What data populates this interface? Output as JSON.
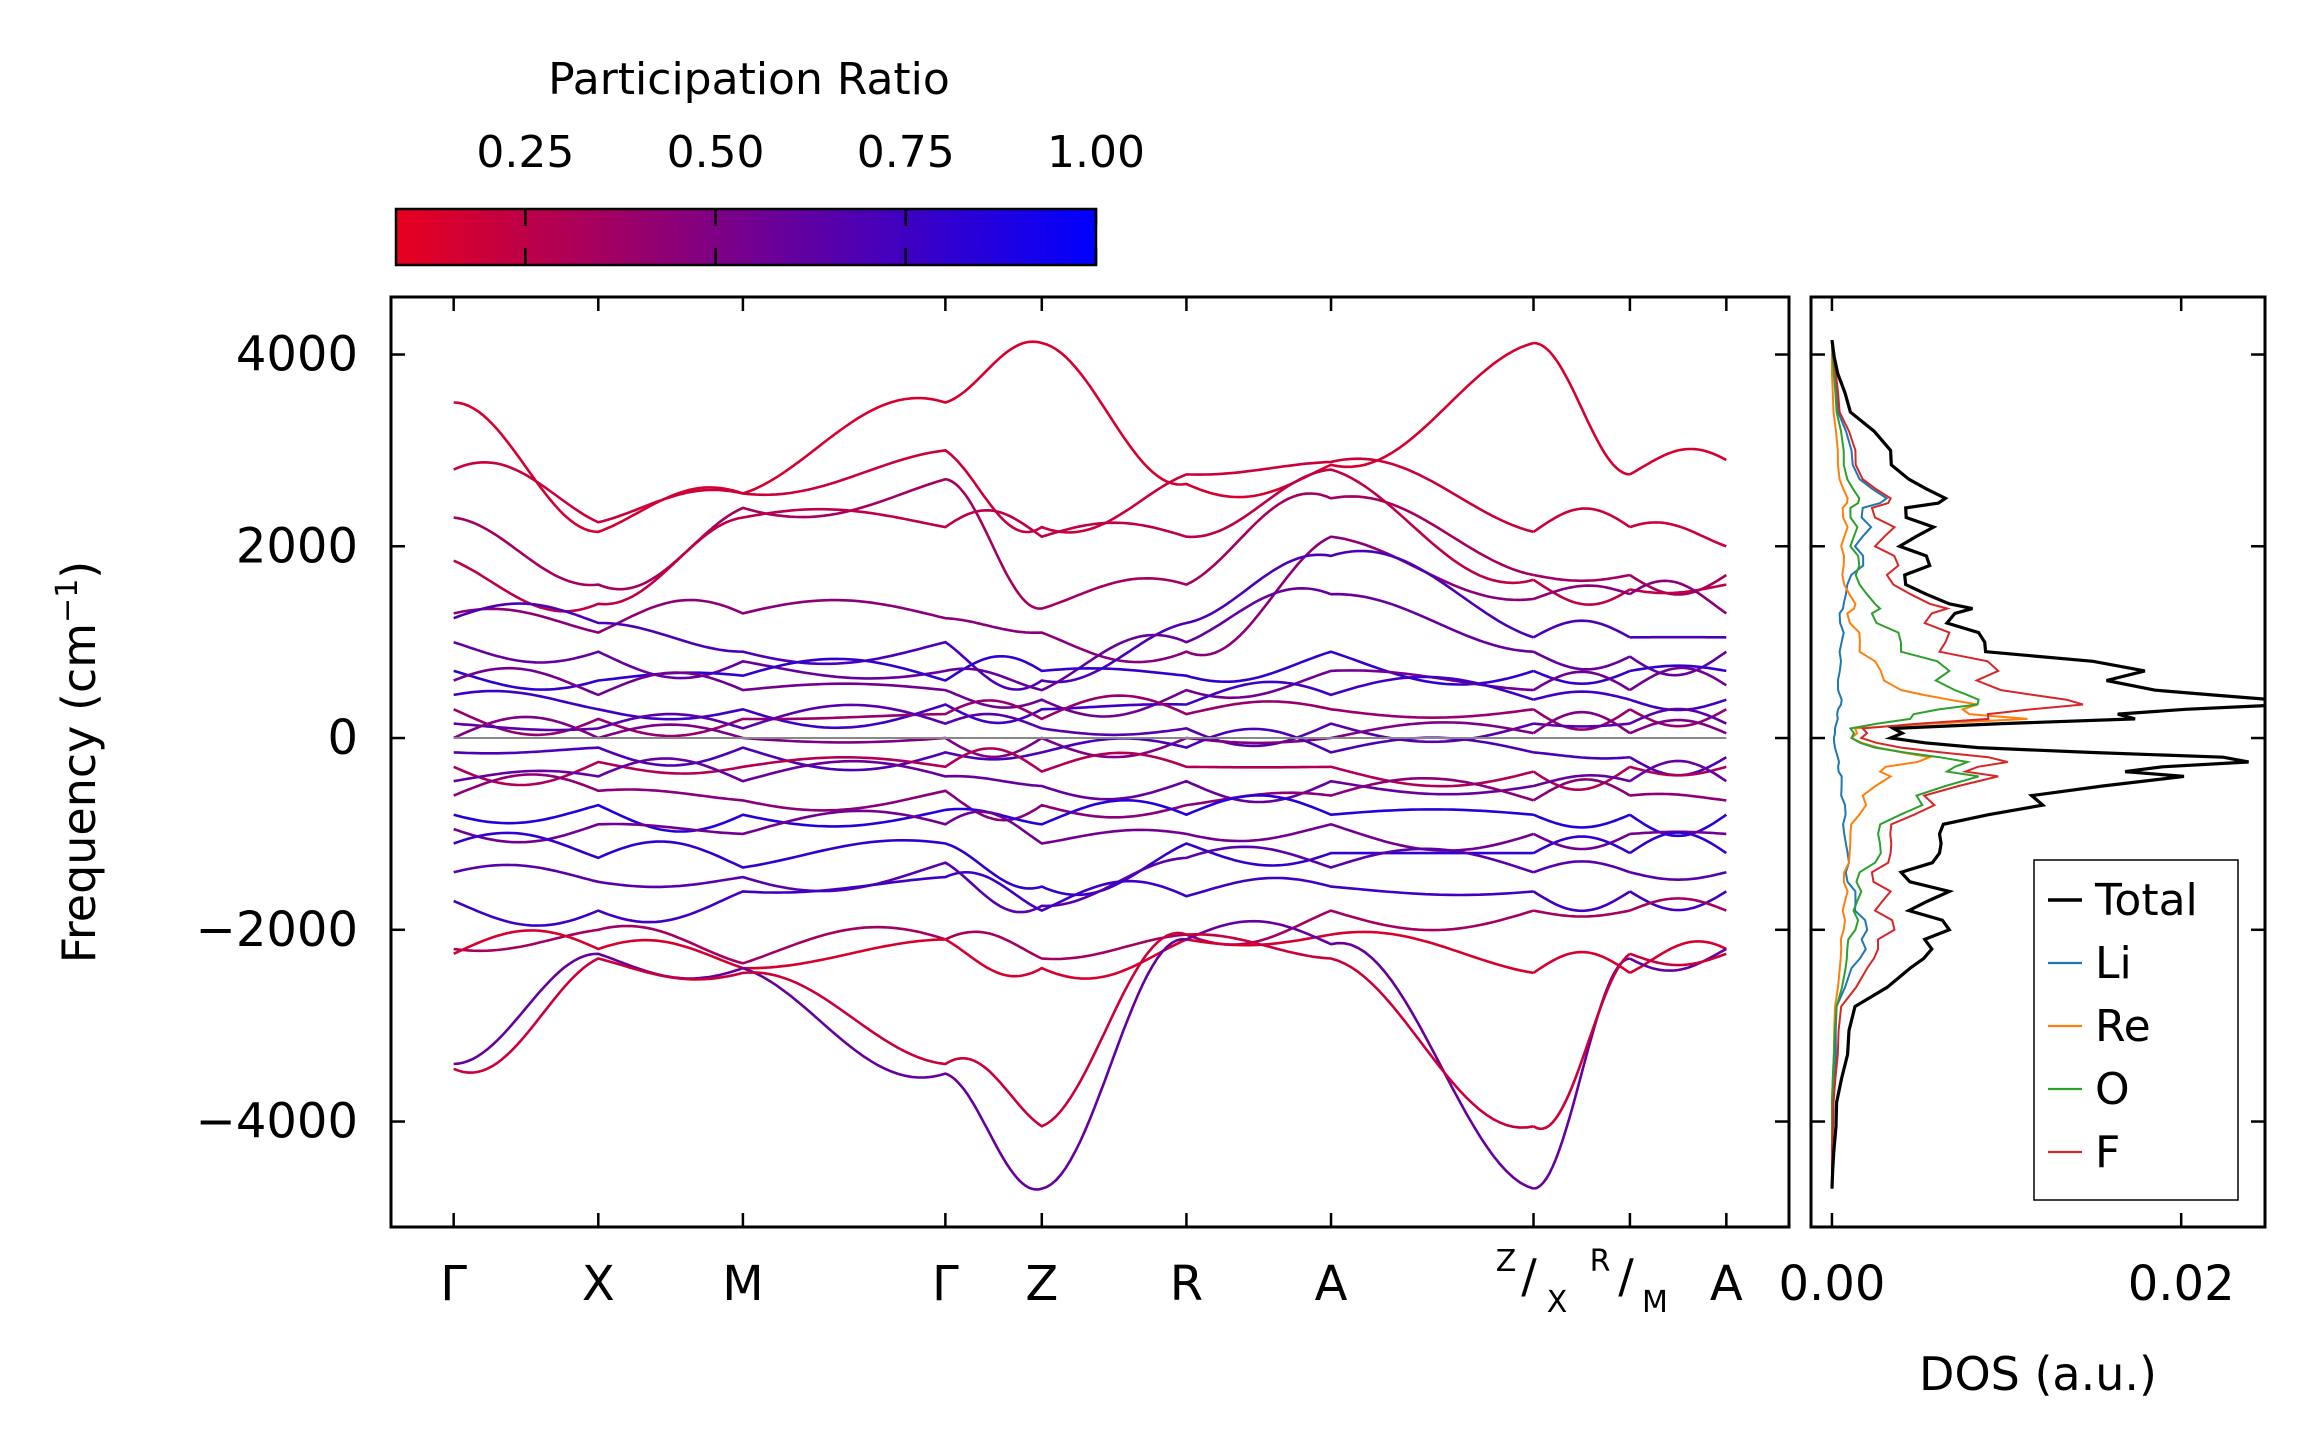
{
  "chart_data": [
    {
      "type": "line",
      "kind": "phonon-band-structure",
      "ylabel": "Frequency (cm",
      "ylabel_sup": "−1",
      "ylabel_close": ")",
      "ylim": [
        -5100,
        4600
      ],
      "yticks": [
        4000,
        2000,
        0,
        -2000,
        -4000
      ],
      "ytick_labels": [
        "4000",
        "2000",
        "0",
        "−2000",
        "−4000"
      ],
      "kpath_positions": [
        0,
        1.5,
        3.0,
        5.1,
        6.1,
        7.6,
        9.1,
        11.2,
        12.2,
        13.2
      ],
      "xlim": [
        -0.65,
        13.85
      ],
      "kpath_labels": [
        "Γ",
        "X",
        "M",
        "Γ",
        "Z",
        "R",
        "A",
        "",
        "",
        "A"
      ],
      "kpath_breaks": [
        {
          "before": "Z",
          "after": "X"
        },
        {
          "before": "R",
          "after": "M"
        }
      ],
      "segments": [
        [
          0,
          7
        ],
        [
          7,
          8
        ],
        [
          8,
          9
        ]
      ],
      "zero_line": 0,
      "colorbar": {
        "title": "Participation Ratio",
        "range": [
          0.08,
          1.0
        ],
        "ticks": [
          0.25,
          0.5,
          0.75,
          1.0
        ],
        "tick_labels": [
          "0.25",
          "0.50",
          "0.75",
          "1.00"
        ],
        "low_color": "#e8001e",
        "high_color": "#0000ff"
      },
      "series_note": "bands sampled qualitatively at k-points; participation ratio drives color",
      "bands": [
        {
          "pr": 0.15,
          "values": [
            3500,
            2150,
            2550,
            3500,
            4120,
            2650,
            2850,
            4120,
            2750,
            2900
          ]
        },
        {
          "pr": 0.2,
          "values": [
            2800,
            2250,
            2550,
            3000,
            2200,
            2750,
            2880,
            2150,
            2200,
            2000
          ]
        },
        {
          "pr": 0.35,
          "values": [
            2300,
            1600,
            2400,
            2700,
            1350,
            1600,
            2500,
            1700,
            1700,
            1700
          ]
        },
        {
          "pr": 0.25,
          "values": [
            1850,
            1400,
            2300,
            2200,
            2100,
            2100,
            2800,
            1650,
            1550,
            1600
          ]
        },
        {
          "pr": 0.45,
          "values": [
            1300,
            1100,
            1300,
            1250,
            1100,
            900,
            2100,
            1450,
            1500,
            1300
          ]
        },
        {
          "pr": 0.7,
          "values": [
            1250,
            1200,
            900,
            1000,
            600,
            1200,
            1900,
            1050,
            1050,
            1050
          ]
        },
        {
          "pr": 0.6,
          "values": [
            1000,
            900,
            800,
            700,
            500,
            1000,
            1500,
            900,
            850,
            900
          ]
        },
        {
          "pr": 0.8,
          "values": [
            700,
            600,
            650,
            600,
            700,
            650,
            900,
            700,
            700,
            700
          ]
        },
        {
          "pr": 0.55,
          "values": [
            600,
            450,
            500,
            500,
            400,
            500,
            700,
            500,
            500,
            550
          ]
        },
        {
          "pr": 0.75,
          "values": [
            450,
            300,
            300,
            350,
            300,
            350,
            450,
            400,
            400,
            400
          ]
        },
        {
          "pr": 0.4,
          "values": [
            300,
            200,
            200,
            250,
            200,
            250,
            300,
            300,
            300,
            300
          ]
        },
        {
          "pr": 0.65,
          "values": [
            150,
            100,
            100,
            150,
            100,
            100,
            150,
            150,
            150,
            150
          ]
        },
        {
          "pr": 0.5,
          "values": [
            0,
            0,
            0,
            0,
            0,
            0,
            0,
            50,
            50,
            50
          ]
        },
        {
          "pr": 0.7,
          "values": [
            -150,
            -100,
            -100,
            -150,
            -150,
            -100,
            -150,
            -150,
            -200,
            -200
          ]
        },
        {
          "pr": 0.3,
          "values": [
            -300,
            -250,
            -300,
            -300,
            -350,
            -300,
            -300,
            -350,
            -300,
            -300
          ]
        },
        {
          "pr": 0.6,
          "values": [
            -450,
            -400,
            -450,
            -400,
            -500,
            -450,
            -450,
            -500,
            -450,
            -450
          ]
        },
        {
          "pr": 0.45,
          "values": [
            -600,
            -550,
            -650,
            -550,
            -700,
            -700,
            -600,
            -650,
            -600,
            -650
          ]
        },
        {
          "pr": 0.85,
          "values": [
            -800,
            -700,
            -800,
            -750,
            -900,
            -800,
            -800,
            -800,
            -800,
            -800
          ]
        },
        {
          "pr": 0.55,
          "values": [
            -950,
            -900,
            -1000,
            -900,
            -1100,
            -1000,
            -900,
            -1000,
            -1000,
            -1000
          ]
        },
        {
          "pr": 0.8,
          "values": [
            -1100,
            -1250,
            -1350,
            -1100,
            -1550,
            -1100,
            -1200,
            -1200,
            -1200,
            -1200
          ]
        },
        {
          "pr": 0.65,
          "values": [
            -1400,
            -1500,
            -1450,
            -1300,
            -1750,
            -1250,
            -1350,
            -1400,
            -1400,
            -1400
          ]
        },
        {
          "pr": 0.75,
          "values": [
            -1700,
            -1800,
            -1600,
            -1450,
            -1800,
            -1650,
            -1550,
            -1600,
            -1600,
            -1600
          ]
        },
        {
          "pr": 0.35,
          "values": [
            -2200,
            -2000,
            -2350,
            -2100,
            -2300,
            -2050,
            -1800,
            -1800,
            -1800,
            -1800
          ]
        },
        {
          "pr": 0.15,
          "values": [
            -2250,
            -2200,
            -2400,
            -2100,
            -2400,
            -2100,
            -2050,
            -2450,
            -2450,
            -2200
          ]
        },
        {
          "pr": 0.6,
          "values": [
            -3400,
            -2250,
            -2400,
            -3500,
            -4700,
            -2100,
            -2150,
            -4700,
            -2300,
            -2200
          ]
        },
        {
          "pr": 0.2,
          "values": [
            -3450,
            -2300,
            -2450,
            -3400,
            -4050,
            -2050,
            -2300,
            -4050,
            -2250,
            -2250
          ]
        }
      ]
    },
    {
      "type": "line",
      "kind": "density-of-states",
      "xlabel": "DOS (a.u.)",
      "xlim": [
        -0.0012,
        0.0248
      ],
      "xticks": [
        0.0,
        0.02
      ],
      "xtick_labels": [
        "0.00",
        "0.02"
      ],
      "ylim": [
        -5100,
        4600
      ],
      "legend_position": "bottom-right",
      "y": [
        4150,
        3800,
        3400,
        3000,
        2700,
        2500,
        2400,
        2200,
        2000,
        1800,
        1600,
        1400,
        1300,
        1100,
        900,
        700,
        500,
        400,
        300,
        200,
        100,
        0,
        -100,
        -200,
        -300,
        -400,
        -600,
        -800,
        -1000,
        -1200,
        -1400,
        -1600,
        -1800,
        -2000,
        -2200,
        -2400,
        -2800,
        -3300,
        -3800,
        -4300,
        -4700
      ],
      "series": [
        {
          "name": "Total",
          "color": "#000000",
          "values": [
            0.0,
            0.0003,
            0.0012,
            0.003,
            0.005,
            0.0058,
            0.0048,
            0.0052,
            0.0044,
            0.005,
            0.0048,
            0.006,
            0.008,
            0.0075,
            0.01,
            0.016,
            0.021,
            0.0225,
            0.023,
            0.0155,
            0.004,
            0.003,
            0.0095,
            0.02,
            0.0215,
            0.018,
            0.013,
            0.008,
            0.007,
            0.0055,
            0.0045,
            0.006,
            0.005,
            0.006,
            0.0065,
            0.004,
            0.0015,
            0.0008,
            0.0003,
            0.0001,
            0.0
          ]
        },
        {
          "name": "Li",
          "color": "#1f77b4",
          "values": [
            0.0,
            0.0001,
            0.0004,
            0.001,
            0.0018,
            0.0028,
            0.002,
            0.002,
            0.0015,
            0.0016,
            0.001,
            0.0006,
            0.0005,
            0.0006,
            0.0005,
            0.0004,
            0.0004,
            0.0005,
            0.0004,
            0.0003,
            0.0002,
            0.0001,
            0.0002,
            0.0003,
            0.0004,
            0.0005,
            0.0006,
            0.0007,
            0.0008,
            0.0008,
            0.0009,
            0.0012,
            0.0015,
            0.0018,
            0.0022,
            0.001,
            0.0003,
            0.0002,
            0.0001,
            0.0,
            0.0
          ]
        },
        {
          "name": "Re",
          "color": "#ff7f0e",
          "values": [
            0.0,
            0.0,
            0.0001,
            0.0003,
            0.0005,
            0.0008,
            0.0007,
            0.0008,
            0.0006,
            0.0006,
            0.0008,
            0.0012,
            0.001,
            0.0014,
            0.0018,
            0.0025,
            0.0045,
            0.006,
            0.0085,
            0.01,
            0.0015,
            0.001,
            0.003,
            0.005,
            0.0035,
            0.003,
            0.002,
            0.0014,
            0.0012,
            0.0009,
            0.0008,
            0.0008,
            0.0007,
            0.0006,
            0.0006,
            0.0004,
            0.0002,
            0.0001,
            0.0,
            0.0,
            0.0
          ]
        },
        {
          "name": "O",
          "color": "#2ca02c",
          "values": [
            0.0,
            0.0001,
            0.0003,
            0.0006,
            0.001,
            0.0014,
            0.0012,
            0.0013,
            0.0012,
            0.0014,
            0.0018,
            0.0022,
            0.0026,
            0.0034,
            0.0045,
            0.006,
            0.008,
            0.0075,
            0.007,
            0.004,
            0.0012,
            0.001,
            0.0028,
            0.0055,
            0.008,
            0.0075,
            0.0055,
            0.0035,
            0.003,
            0.0025,
            0.0018,
            0.0015,
            0.0014,
            0.0012,
            0.001,
            0.0007,
            0.0003,
            0.0001,
            0.0,
            0.0,
            0.0
          ]
        },
        {
          "name": "F",
          "color": "#d62728",
          "values": [
            0.0,
            0.0002,
            0.0005,
            0.0012,
            0.002,
            0.003,
            0.0026,
            0.0032,
            0.0028,
            0.0034,
            0.004,
            0.005,
            0.0065,
            0.006,
            0.007,
            0.0085,
            0.011,
            0.012,
            0.013,
            0.008,
            0.002,
            0.0015,
            0.0045,
            0.008,
            0.0095,
            0.0085,
            0.006,
            0.0042,
            0.0038,
            0.003,
            0.0026,
            0.003,
            0.0028,
            0.0032,
            0.003,
            0.0018,
            0.0006,
            0.0003,
            0.0001,
            0.0,
            0.0
          ]
        }
      ]
    }
  ]
}
